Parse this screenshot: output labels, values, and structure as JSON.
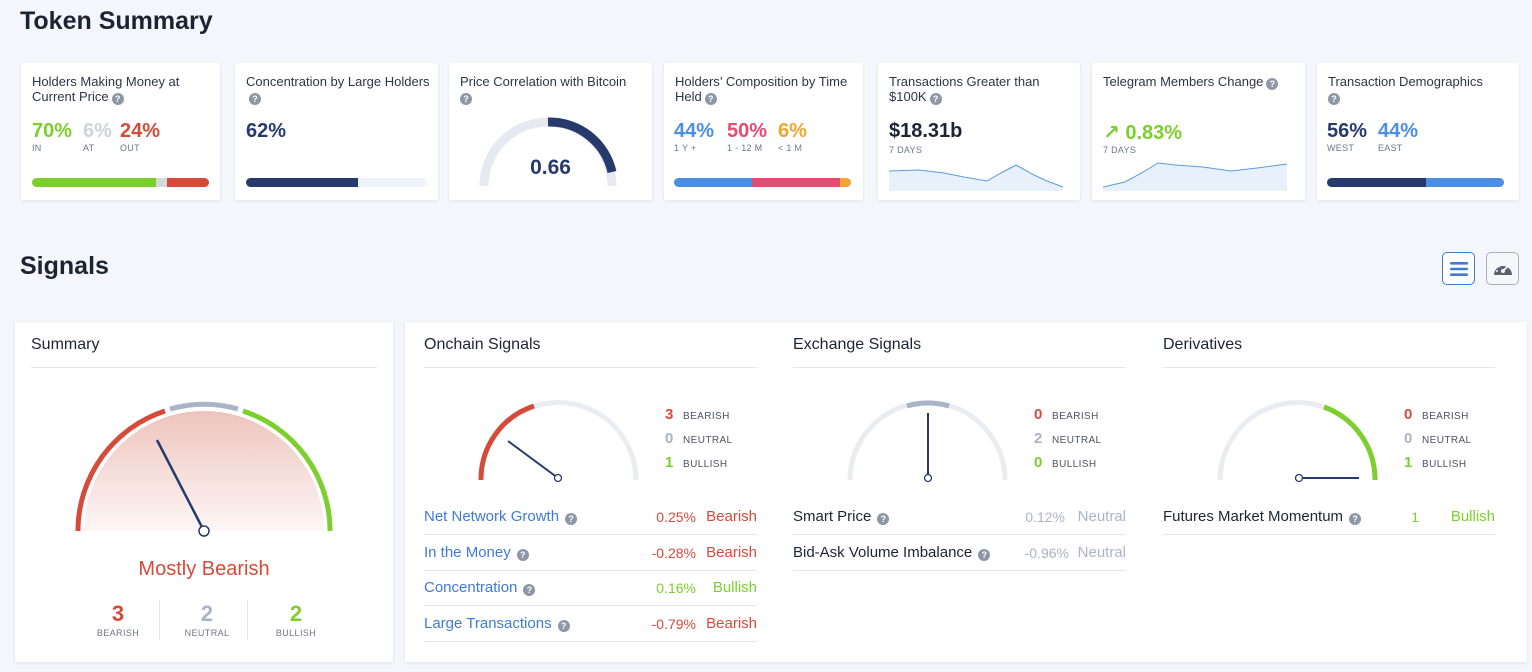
{
  "token_summary": {
    "title": "Token Summary",
    "cards": {
      "money": {
        "title": "Holders Making Money at Current Price",
        "in": {
          "value": "70%",
          "label": "IN"
        },
        "at": {
          "value": "6%",
          "label": "AT"
        },
        "out": {
          "value": "24%",
          "label": "OUT"
        },
        "bar_fractions": [
          0.7,
          0.06,
          0.24
        ]
      },
      "concentration": {
        "title": "Concentration by Large Holders",
        "value": "62%",
        "bar_fraction": 0.62
      },
      "correlation": {
        "title": "Price Correlation with Bitcoin",
        "value": "0.66",
        "gauge_fraction": 0.66
      },
      "composition": {
        "title": "Holders’ Composition by Time Held",
        "long": {
          "value": "44%",
          "label": "1 Y +"
        },
        "mid": {
          "value": "50%",
          "label": "1 - 12 M"
        },
        "short": {
          "value": "6%",
          "label": "< 1 M"
        },
        "bar_fractions": [
          0.44,
          0.5,
          0.06
        ]
      },
      "transactions": {
        "title": "Transactions Greater than $100K",
        "value": "$18.31b",
        "period": "7 DAYS"
      },
      "telegram": {
        "title": "Telegram Members Change",
        "arrow": "↗",
        "value": "0.83%",
        "period": "7 DAYS"
      },
      "demographics": {
        "title": "Transaction Demographics",
        "west": {
          "value": "56%",
          "label": "WEST"
        },
        "east": {
          "value": "44%",
          "label": "EAST"
        },
        "bar_fractions": [
          0.56,
          0.44
        ]
      }
    }
  },
  "signals": {
    "title": "Signals",
    "view_buttons": {
      "list": "list-icon",
      "gauge": "speedometer-icon"
    },
    "summary": {
      "title": "Summary",
      "verdict": "Mostly Bearish",
      "bearish": {
        "count": "3",
        "label": "BEARISH"
      },
      "neutral": {
        "count": "2",
        "label": "NEUTRAL"
      },
      "bullish": {
        "count": "2",
        "label": "BULLISH"
      }
    },
    "onchain": {
      "title": "Onchain Signals",
      "bearish": {
        "count": "3",
        "label": "BEARISH"
      },
      "neutral": {
        "count": "0",
        "label": "NEUTRAL"
      },
      "bullish": {
        "count": "1",
        "label": "BULLISH"
      },
      "rows": [
        {
          "name": "Net Network Growth",
          "value": "0.25%",
          "verdict": "Bearish"
        },
        {
          "name": "In the Money",
          "value": "-0.28%",
          "verdict": "Bearish"
        },
        {
          "name": "Concentration",
          "value": "0.16%",
          "verdict": "Bullish"
        },
        {
          "name": "Large Transactions",
          "value": "-0.79%",
          "verdict": "Bearish"
        }
      ]
    },
    "exchange": {
      "title": "Exchange Signals",
      "bearish": {
        "count": "0",
        "label": "BEARISH"
      },
      "neutral": {
        "count": "2",
        "label": "NEUTRAL"
      },
      "bullish": {
        "count": "0",
        "label": "BULLISH"
      },
      "rows": [
        {
          "name": "Smart Price",
          "value": "0.12%",
          "verdict": "Neutral"
        },
        {
          "name": "Bid-Ask Volume Imbalance",
          "value": "-0.96%",
          "verdict": "Neutral"
        }
      ]
    },
    "derivatives": {
      "title": "Derivatives",
      "bearish": {
        "count": "0",
        "label": "BEARISH"
      },
      "neutral": {
        "count": "0",
        "label": "NEUTRAL"
      },
      "bullish": {
        "count": "1",
        "label": "BULLISH"
      },
      "rows": [
        {
          "name": "Futures Market Momentum",
          "value": "1",
          "verdict": "Bullish"
        }
      ]
    }
  },
  "colors": {
    "bullish": "#7ccf2c",
    "bearish": "#d64a3a",
    "neutral": "#aab4c8",
    "navy": "#263a6c",
    "link": "#3f7bd6"
  }
}
